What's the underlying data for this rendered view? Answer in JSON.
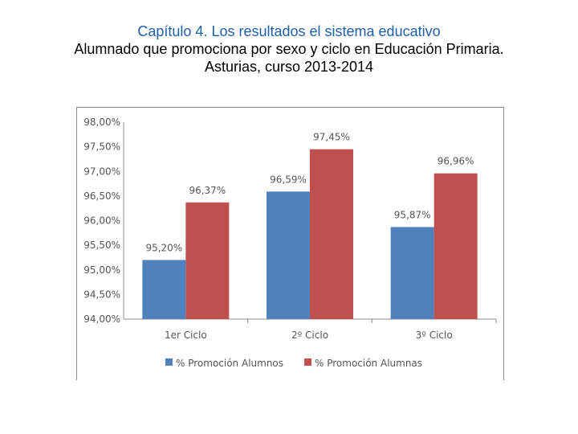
{
  "header": {
    "chapter_title": "Capítulo 4. Los resultados el sistema educativo",
    "subtitle_line1": "Alumnado que promociona por sexo y ciclo en Educación Primaria.",
    "subtitle_line2": "Asturias, curso 2013-2014"
  },
  "colors": {
    "chapter_title": "#1f5fa8",
    "alumnos": "#4f81bd",
    "alumnas": "#c0504d",
    "axis": "#8c8c8c",
    "text": "#555555"
  },
  "chart_data": {
    "type": "bar",
    "title": "",
    "xlabel": "",
    "ylabel": "",
    "categories": [
      "1er Ciclo",
      "2º Ciclo",
      "3º Ciclo"
    ],
    "series": [
      {
        "name": "% Promoción Alumnos",
        "values": [
          95.2,
          96.59,
          95.87
        ],
        "labels": [
          "95,20%",
          "96,59%",
          "95,87%"
        ]
      },
      {
        "name": "% Promoción Alumnas",
        "values": [
          96.37,
          97.45,
          96.96
        ],
        "labels": [
          "96,37%",
          "97,45%",
          "96,96%"
        ]
      }
    ],
    "ylim": [
      94.0,
      98.0
    ],
    "yticks": [
      "94,00%",
      "94,50%",
      "95,00%",
      "95,50%",
      "96,00%",
      "96,50%",
      "97,00%",
      "97,50%",
      "98,00%"
    ],
    "ytick_values": [
      94.0,
      94.5,
      95.0,
      95.5,
      96.0,
      96.5,
      97.0,
      97.5,
      98.0
    ],
    "grid": false,
    "legend_position": "bottom"
  }
}
